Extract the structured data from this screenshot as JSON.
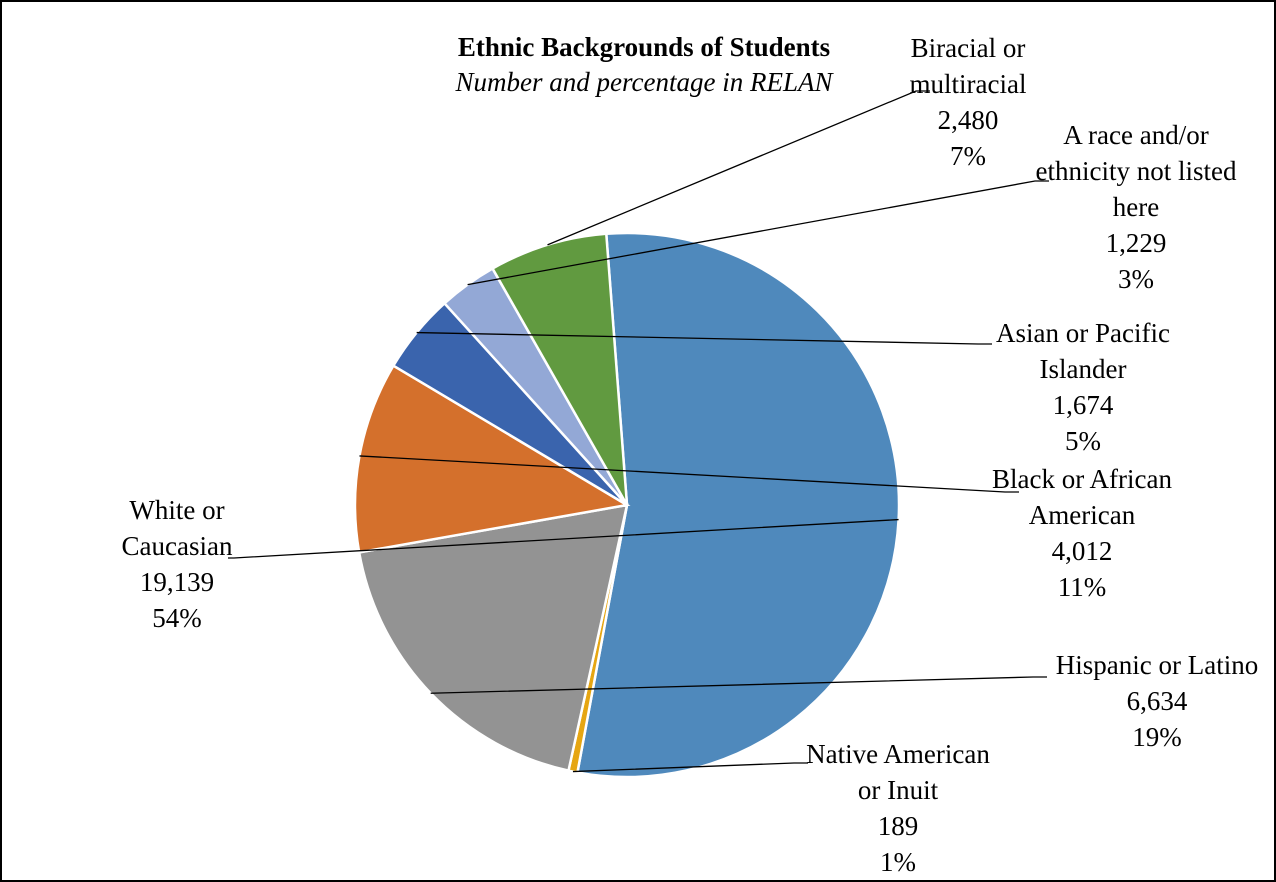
{
  "chart_data": {
    "type": "pie",
    "title": "Ethnic Backgrounds of Students",
    "subtitle": "Number and percentage in RELAN",
    "slices": [
      {
        "key": "white",
        "label_lines": [
          "White or",
          "Caucasian"
        ],
        "value": 19139,
        "value_label": "19,139",
        "percent_label": "54%",
        "color": "#4f89bc"
      },
      {
        "key": "native",
        "label_lines": [
          "Native American",
          "or Inuit"
        ],
        "value": 189,
        "value_label": "189",
        "percent_label": "1%",
        "color": "#e6a612"
      },
      {
        "key": "hispanic",
        "label_lines": [
          "Hispanic or Latino"
        ],
        "value": 6634,
        "value_label": "6,634",
        "percent_label": "19%",
        "color": "#939393"
      },
      {
        "key": "black",
        "label_lines": [
          "Black or African",
          "American"
        ],
        "value": 4012,
        "value_label": "4,012",
        "percent_label": "11%",
        "color": "#d4702c"
      },
      {
        "key": "asian",
        "label_lines": [
          "Asian or Pacific",
          "Islander"
        ],
        "value": 1674,
        "value_label": "1,674",
        "percent_label": "5%",
        "color": "#3a64ad"
      },
      {
        "key": "notlisted",
        "label_lines": [
          "A race and/or",
          "ethnicity not listed",
          "here"
        ],
        "value": 1229,
        "value_label": "1,229",
        "percent_label": "3%",
        "color": "#93a8d6"
      },
      {
        "key": "biracial",
        "label_lines": [
          "Biracial or",
          "multiracial"
        ],
        "value": 2480,
        "value_label": "2,480",
        "percent_label": "7%",
        "color": "#619a40"
      }
    ],
    "legend": "none"
  }
}
